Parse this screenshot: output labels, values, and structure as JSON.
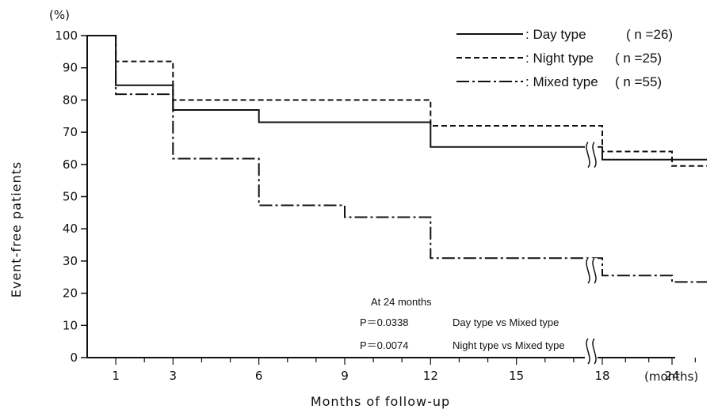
{
  "chart_data": {
    "type": "line",
    "step": true,
    "y_unit_label": "(%)",
    "ylabel": "Event-free patients",
    "xlabel": "Months of follow-up",
    "x_unit_label": "(months)",
    "ylim": [
      0,
      100
    ],
    "yticks": [
      0,
      10,
      20,
      30,
      40,
      50,
      60,
      70,
      80,
      90,
      100
    ],
    "xticks": [
      1,
      3,
      6,
      9,
      12,
      15,
      18,
      24
    ],
    "axis_break": true,
    "grid": false,
    "legend_position": "top-right",
    "series": [
      {
        "name": "Day type",
        "label": ": Day type",
        "n_label": "( n =26)",
        "dash": "solid",
        "points": [
          [
            0,
            100
          ],
          [
            1,
            100
          ],
          [
            1,
            84.6
          ],
          [
            3,
            84.6
          ],
          [
            3,
            76.9
          ],
          [
            6,
            76.9
          ],
          [
            6,
            73.1
          ],
          [
            12,
            73.1
          ],
          [
            12,
            65.4
          ],
          [
            18,
            65.4
          ],
          [
            18,
            61.5
          ],
          [
            24,
            61.5
          ],
          [
            24,
            61.5
          ],
          [
            27,
            61.5
          ]
        ]
      },
      {
        "name": "Night type",
        "label": ": Night type",
        "n_label": "( n =25)",
        "dash": "dashed",
        "points": [
          [
            0,
            100
          ],
          [
            1,
            100
          ],
          [
            1,
            92
          ],
          [
            3,
            92
          ],
          [
            3,
            80
          ],
          [
            12,
            80
          ],
          [
            12,
            72
          ],
          [
            18,
            72
          ],
          [
            18,
            64
          ],
          [
            24,
            64
          ],
          [
            24,
            59.5
          ],
          [
            27,
            59.5
          ]
        ]
      },
      {
        "name": "Mixed type",
        "label": ": Mixed type",
        "n_label": "( n =55)",
        "dash": "dashdot",
        "points": [
          [
            0,
            100
          ],
          [
            1,
            100
          ],
          [
            1,
            81.8
          ],
          [
            3,
            81.8
          ],
          [
            3,
            61.8
          ],
          [
            6,
            61.8
          ],
          [
            6,
            47.3
          ],
          [
            9,
            47.3
          ],
          [
            9,
            43.6
          ],
          [
            12,
            43.6
          ],
          [
            12,
            30.9
          ],
          [
            18,
            30.9
          ],
          [
            18,
            25.5
          ],
          [
            24,
            25.5
          ],
          [
            24,
            23.5
          ],
          [
            27,
            23.5
          ]
        ]
      }
    ],
    "annotations": {
      "title": "At 24 months",
      "lines": [
        {
          "p": "P＝0.0338",
          "text": "Day type vs Mixed type"
        },
        {
          "p": "P＝0.0074",
          "text": "Night type vs Mixed type"
        }
      ]
    }
  }
}
